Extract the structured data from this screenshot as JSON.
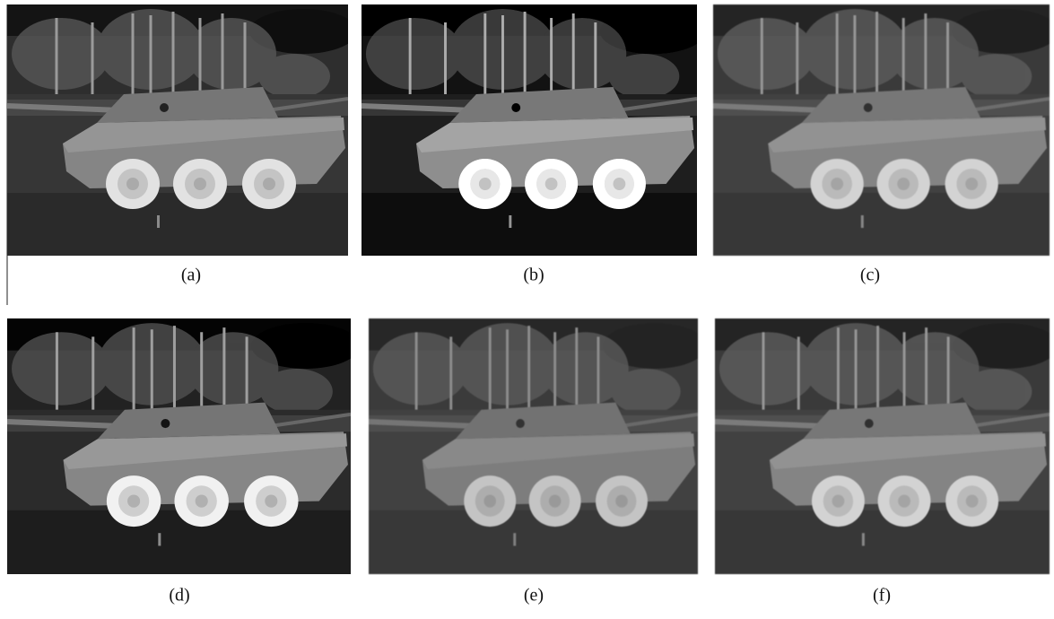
{
  "figure": {
    "panels": [
      {
        "label": "(a)"
      },
      {
        "label": "(b)"
      },
      {
        "label": "(c)"
      },
      {
        "label": "(d)"
      },
      {
        "label": "(e)"
      },
      {
        "label": "(f)"
      }
    ]
  }
}
